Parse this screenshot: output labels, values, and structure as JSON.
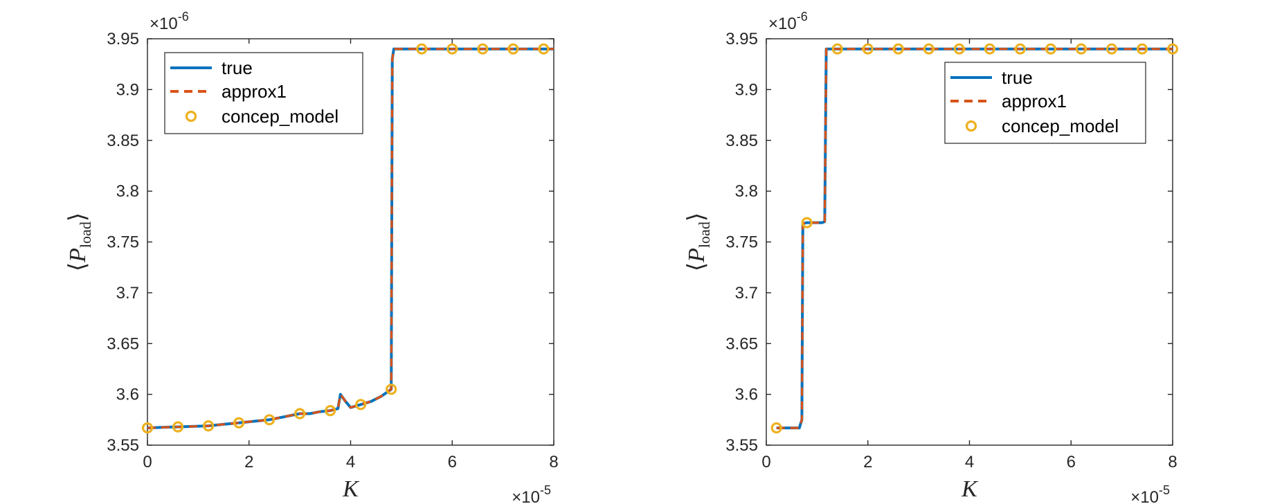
{
  "colors": {
    "true": "#0072BD",
    "approx1": "#D95319",
    "concep_model": "#EDB120",
    "axes": "#262626"
  },
  "chart_data": [
    {
      "type": "line",
      "xlabel": "K",
      "ylabel": "⟨P_load⟩",
      "x_exponent": "×10",
      "x_exponent_power": "-5",
      "y_exponent": "×10",
      "y_exponent_power": "-6",
      "xlim": [
        0,
        8
      ],
      "ylim": [
        3.55,
        3.95
      ],
      "xticks": [
        "0",
        "2",
        "4",
        "6",
        "8"
      ],
      "yticks": [
        "3.55",
        "3.6",
        "3.65",
        "3.7",
        "3.75",
        "3.8",
        "3.85",
        "3.9",
        "3.95"
      ],
      "grid": false,
      "legend_position": "top-left",
      "legend": [
        "true",
        "approx1",
        "concep_model"
      ],
      "series": [
        {
          "name": "true",
          "style": "solid",
          "x": [
            0,
            0.3,
            0.6,
            0.9,
            1.2,
            1.5,
            1.8,
            2.1,
            2.4,
            2.7,
            3.0,
            3.2,
            3.4,
            3.6,
            3.75,
            3.8,
            3.9,
            4.0,
            4.2,
            4.4,
            4.6,
            4.8,
            4.82,
            4.85,
            4.9,
            5.4,
            6.0,
            6.6,
            7.2,
            7.8,
            8.0
          ],
          "y": [
            3.567,
            3.5675,
            3.568,
            3.5685,
            3.569,
            3.5705,
            3.572,
            3.5735,
            3.575,
            3.578,
            3.581,
            3.581,
            3.583,
            3.584,
            3.586,
            3.6,
            3.593,
            3.587,
            3.59,
            3.593,
            3.598,
            3.605,
            3.93,
            3.94,
            3.94,
            3.94,
            3.94,
            3.94,
            3.94,
            3.94,
            3.94
          ]
        },
        {
          "name": "approx1",
          "style": "dashed",
          "x": [
            0,
            0.3,
            0.6,
            0.9,
            1.2,
            1.5,
            1.8,
            2.1,
            2.4,
            2.7,
            3.0,
            3.2,
            3.4,
            3.6,
            3.75,
            3.8,
            3.9,
            4.0,
            4.2,
            4.4,
            4.6,
            4.8,
            4.82,
            4.85,
            4.9,
            5.4,
            6.0,
            6.6,
            7.2,
            7.8,
            8.0
          ],
          "y": [
            3.567,
            3.5675,
            3.568,
            3.5685,
            3.569,
            3.5705,
            3.572,
            3.5735,
            3.575,
            3.578,
            3.581,
            3.581,
            3.583,
            3.584,
            3.586,
            3.6,
            3.593,
            3.587,
            3.59,
            3.593,
            3.598,
            3.605,
            3.93,
            3.94,
            3.94,
            3.94,
            3.94,
            3.94,
            3.94,
            3.94,
            3.94
          ]
        },
        {
          "name": "concep_model",
          "style": "markers",
          "x": [
            0,
            0.6,
            1.2,
            1.8,
            2.4,
            3.0,
            3.6,
            4.2,
            4.8,
            5.4,
            6.0,
            6.6,
            7.2,
            7.8
          ],
          "y": [
            3.567,
            3.568,
            3.569,
            3.572,
            3.575,
            3.581,
            3.584,
            3.59,
            3.605,
            3.94,
            3.94,
            3.94,
            3.94,
            3.94
          ]
        }
      ]
    },
    {
      "type": "line",
      "xlabel": "K",
      "ylabel": "⟨P_load⟩",
      "x_exponent": "×10",
      "x_exponent_power": "-5",
      "y_exponent": "×10",
      "y_exponent_power": "-6",
      "xlim": [
        0,
        8
      ],
      "ylim": [
        3.55,
        3.95
      ],
      "xticks": [
        "0",
        "2",
        "4",
        "6",
        "8"
      ],
      "yticks": [
        "3.55",
        "3.6",
        "3.65",
        "3.7",
        "3.75",
        "3.8",
        "3.85",
        "3.9",
        "3.95"
      ],
      "grid": false,
      "legend_position": "top-right",
      "legend": [
        "true",
        "approx1",
        "concep_model"
      ],
      "series": [
        {
          "name": "true",
          "style": "solid",
          "x": [
            0.2,
            0.5,
            0.65,
            0.7,
            0.72,
            0.8,
            1.1,
            1.15,
            1.18,
            1.4,
            2.0,
            4.0,
            6.0,
            8.0
          ],
          "y": [
            3.567,
            3.567,
            3.567,
            3.575,
            3.768,
            3.769,
            3.769,
            3.77,
            3.94,
            3.94,
            3.94,
            3.94,
            3.94,
            3.94
          ]
        },
        {
          "name": "approx1",
          "style": "dashed",
          "x": [
            0.2,
            0.5,
            0.65,
            0.7,
            0.72,
            0.8,
            1.1,
            1.15,
            1.18,
            1.4,
            2.0,
            4.0,
            6.0,
            8.0
          ],
          "y": [
            3.567,
            3.567,
            3.567,
            3.575,
            3.768,
            3.769,
            3.769,
            3.77,
            3.94,
            3.94,
            3.94,
            3.94,
            3.94,
            3.94
          ]
        },
        {
          "name": "concep_model",
          "style": "markers",
          "x": [
            0.2,
            0.8,
            1.4,
            2.0,
            2.6,
            3.2,
            3.8,
            4.4,
            5.0,
            5.6,
            6.2,
            6.8,
            7.4,
            8.0
          ],
          "y": [
            3.567,
            3.769,
            3.94,
            3.94,
            3.94,
            3.94,
            3.94,
            3.94,
            3.94,
            3.94,
            3.94,
            3.94,
            3.94,
            3.94
          ]
        }
      ]
    }
  ]
}
